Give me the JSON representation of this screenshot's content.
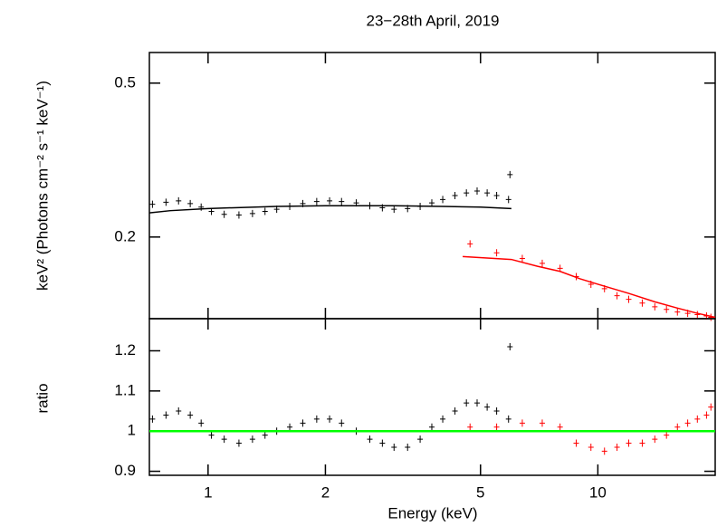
{
  "chart_data": [
    {
      "type": "scatter",
      "title": "23−28th April, 2019",
      "ylabel": "keV² (Photons cm⁻² s⁻¹ keV⁻¹)",
      "xlog": true,
      "ylog": true,
      "xlim": [
        0.707,
        20
      ],
      "ylim": [
        0.123,
        0.6
      ],
      "xticks": [
        1,
        2,
        5,
        10
      ],
      "yticks": [
        0.2,
        0.5
      ],
      "series": [
        {
          "style": "points",
          "color": "#000000",
          "x": [
            0.72,
            0.78,
            0.84,
            0.9,
            0.96,
            1.02,
            1.1,
            1.2,
            1.3,
            1.4,
            1.5,
            1.62,
            1.75,
            1.9,
            2.05,
            2.2,
            2.4,
            2.6,
            2.8,
            3.0,
            3.25,
            3.5,
            3.75,
            4.0,
            4.3,
            4.6,
            4.9,
            5.2,
            5.5,
            5.9,
            5.95
          ],
          "values": [
            0.243,
            0.246,
            0.248,
            0.244,
            0.239,
            0.233,
            0.229,
            0.228,
            0.23,
            0.233,
            0.236,
            0.24,
            0.244,
            0.247,
            0.248,
            0.247,
            0.245,
            0.241,
            0.238,
            0.236,
            0.237,
            0.24,
            0.245,
            0.25,
            0.256,
            0.26,
            0.263,
            0.26,
            0.256,
            0.25,
            0.29
          ]
        },
        {
          "style": "line",
          "color": "#000000",
          "x": [
            0.707,
            0.8,
            1,
            1.5,
            2,
            3,
            4,
            5,
            6
          ],
          "values": [
            0.231,
            0.234,
            0.237,
            0.24,
            0.241,
            0.241,
            0.24,
            0.239,
            0.237
          ]
        },
        {
          "style": "points",
          "color": "#ff0000",
          "x": [
            4.7,
            5.5,
            6.4,
            7.2,
            8.0,
            8.8,
            9.6,
            10.4,
            11.2,
            12,
            13,
            14,
            15,
            16,
            17,
            18,
            19,
            19.5
          ],
          "values": [
            0.192,
            0.182,
            0.176,
            0.171,
            0.166,
            0.158,
            0.151,
            0.147,
            0.141,
            0.138,
            0.135,
            0.132,
            0.13,
            0.128,
            0.127,
            0.126,
            0.125,
            0.124
          ]
        },
        {
          "style": "line",
          "color": "#ff0000",
          "x": [
            4.5,
            6,
            7,
            8,
            9,
            10,
            12,
            14,
            16,
            18,
            20
          ],
          "values": [
            0.178,
            0.175,
            0.168,
            0.163,
            0.156,
            0.151,
            0.143,
            0.136,
            0.131,
            0.127,
            0.124
          ]
        }
      ]
    },
    {
      "type": "scatter",
      "ylabel": "ratio",
      "xlabel": "Energy (keV)",
      "xlog": true,
      "xlim": [
        0.707,
        20
      ],
      "ylim": [
        0.89,
        1.28
      ],
      "xticks": [
        1,
        2,
        5,
        10
      ],
      "yticks": [
        0.9,
        1,
        1.1,
        1.2
      ],
      "series": [
        {
          "style": "points",
          "color": "#000000",
          "x": [
            0.72,
            0.78,
            0.84,
            0.9,
            0.96,
            1.02,
            1.1,
            1.2,
            1.3,
            1.4,
            1.5,
            1.62,
            1.75,
            1.9,
            2.05,
            2.2,
            2.4,
            2.6,
            2.8,
            3.0,
            3.25,
            3.5,
            3.75,
            4.0,
            4.3,
            4.6,
            4.9,
            5.2,
            5.5,
            5.9,
            5.95
          ],
          "values": [
            1.03,
            1.04,
            1.05,
            1.04,
            1.02,
            0.99,
            0.98,
            0.97,
            0.98,
            0.99,
            1.0,
            1.01,
            1.02,
            1.03,
            1.03,
            1.02,
            1.0,
            0.98,
            0.97,
            0.96,
            0.96,
            0.98,
            1.01,
            1.03,
            1.05,
            1.07,
            1.07,
            1.06,
            1.05,
            1.03,
            1.21
          ]
        },
        {
          "style": "points",
          "color": "#ff0000",
          "x": [
            4.7,
            5.5,
            6.4,
            7.2,
            8.0,
            8.8,
            9.6,
            10.4,
            11.2,
            12,
            13,
            14,
            15,
            16,
            17,
            18,
            19,
            19.5
          ],
          "values": [
            1.01,
            1.01,
            1.02,
            1.02,
            1.01,
            0.97,
            0.96,
            0.95,
            0.96,
            0.97,
            0.97,
            0.98,
            0.99,
            1.01,
            1.02,
            1.03,
            1.04,
            1.06
          ]
        },
        {
          "style": "line",
          "color": "#00ff00",
          "x": [
            0.707,
            20
          ],
          "values": [
            1,
            1
          ]
        }
      ]
    }
  ]
}
